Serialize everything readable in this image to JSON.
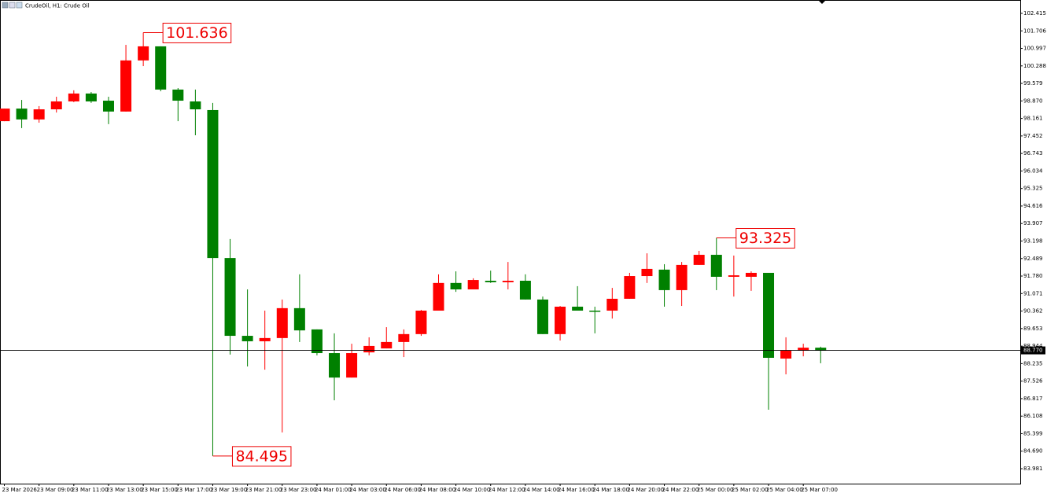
{
  "chart_data": {
    "type": "candlestick",
    "title": "CrudeOil, H1:  Crude Oil",
    "categories": [
      "23 Mar 2026",
      null,
      "23 Mar 09:00",
      null,
      "23 Mar 11:00",
      null,
      "23 Mar 13:00",
      null,
      "23 Mar 15:00",
      null,
      "23 Mar 17:00",
      null,
      "23 Mar 19:00",
      null,
      "23 Mar 21:00",
      null,
      "23 Mar 23:00",
      null,
      "24 Mar 01:00",
      null,
      "24 Mar 03:00",
      null,
      "24 Mar 06:00",
      null,
      "24 Mar 08:00",
      null,
      "24 Mar 10:00",
      null,
      "24 Mar 12:00",
      null,
      "24 Mar 14:00",
      null,
      "24 Mar 16:00",
      null,
      "24 Mar 18:00",
      null,
      "24 Mar 20:00",
      null,
      "24 Mar 22:00",
      null,
      "25 Mar 00:00",
      null,
      "25 Mar 02:00",
      null,
      "25 Mar 04:00",
      null,
      "25 Mar 07:00",
      null
    ],
    "open": [
      98.05,
      98.56,
      98.12,
      98.53,
      98.85,
      99.17,
      98.88,
      98.44,
      100.51,
      101.08,
      99.33,
      98.85,
      98.5,
      92.51,
      89.36,
      89.14,
      89.27,
      90.48,
      89.62,
      88.66,
      87.67,
      88.69,
      88.85,
      89.11,
      89.43,
      90.38,
      91.5,
      91.24,
      91.59,
      91.53,
      91.59,
      90.83,
      89.43,
      90.54,
      90.38,
      90.38,
      90.86,
      91.78,
      92.04,
      91.21,
      92.23,
      92.64,
      91.75,
      91.75,
      91.91,
      88.44,
      88.76,
      88.88
    ],
    "high": [
      98.56,
      98.91,
      98.66,
      99.04,
      99.3,
      99.23,
      99.04,
      101.14,
      101.636,
      101.08,
      99.39,
      99.33,
      98.79,
      93.28,
      91.24,
      90.38,
      90.83,
      91.85,
      89.62,
      89.46,
      89.04,
      89.3,
      89.71,
      89.62,
      90.41,
      91.85,
      91.97,
      91.69,
      92.0,
      92.35,
      91.85,
      90.95,
      90.57,
      91.37,
      90.54,
      91.3,
      91.91,
      92.7,
      92.26,
      92.35,
      92.8,
      93.325,
      92.61,
      91.97,
      91.91,
      89.3,
      89.04,
      88.92
    ],
    "low": [
      98.05,
      97.77,
      97.99,
      98.4,
      98.82,
      98.79,
      97.93,
      98.44,
      100.28,
      99.26,
      98.05,
      97.48,
      84.495,
      88.6,
      88.12,
      87.99,
      85.45,
      89.11,
      88.57,
      86.75,
      87.67,
      88.57,
      88.85,
      88.5,
      89.36,
      90.38,
      91.14,
      91.24,
      91.5,
      91.24,
      90.83,
      89.43,
      89.17,
      90.38,
      89.46,
      90.06,
      90.86,
      91.5,
      90.54,
      90.57,
      92.23,
      91.21,
      90.95,
      91.18,
      86.37,
      87.8,
      88.53,
      88.25
    ],
    "close": [
      98.56,
      98.12,
      98.53,
      98.85,
      99.17,
      98.85,
      98.44,
      100.51,
      101.08,
      99.33,
      98.88,
      98.53,
      92.51,
      89.36,
      89.14,
      89.27,
      90.48,
      89.58,
      88.66,
      87.67,
      88.66,
      88.95,
      89.11,
      89.43,
      90.38,
      91.5,
      91.24,
      91.62,
      91.53,
      91.59,
      90.83,
      89.43,
      90.54,
      90.38,
      90.35,
      90.86,
      91.78,
      92.07,
      91.21,
      92.23,
      92.64,
      91.75,
      91.81,
      91.91,
      88.47,
      88.76,
      88.88,
      88.77
    ],
    "up_color": "#ff0000",
    "down_color": "#008000",
    "annotations": [
      101.636,
      84.495,
      93.325
    ],
    "current_price": {
      "value": 88.77,
      "label": "88.770"
    },
    "ylim": [
      83.376,
      102.956
    ],
    "yticks": [
      102.415,
      101.706,
      100.997,
      100.288,
      99.579,
      {
        "value": 98.87,
        "label": "98.870"
      },
      98.161,
      97.452,
      96.743,
      96.034,
      95.325,
      94.616,
      93.907,
      93.198,
      92.489,
      {
        "value": 91.78,
        "label": "91.780"
      },
      91.071,
      90.362,
      89.653,
      88.944,
      88.235,
      87.526,
      86.817,
      86.108,
      85.399,
      {
        "value": 84.69,
        "label": "84.690"
      },
      83.981
    ]
  }
}
